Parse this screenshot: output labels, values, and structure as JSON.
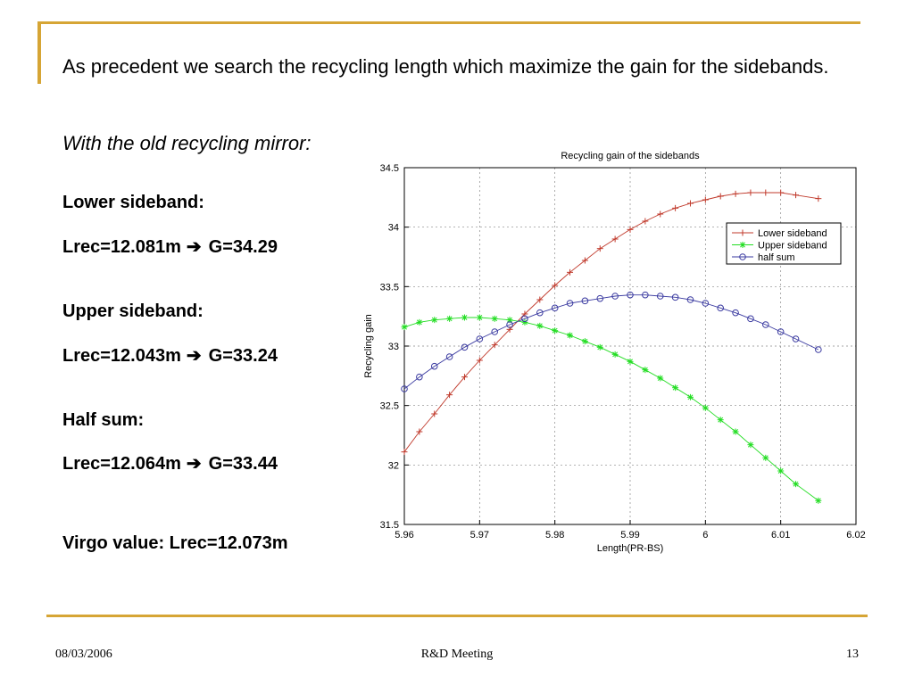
{
  "slide": {
    "intro": "As precedent we search the recycling length which maximize the gain for the sidebands.",
    "old_mirror": "With the old recycling mirror:",
    "lower_heading": "Lower sideband:",
    "lower_result": {
      "lrec": "Lrec=12.081m",
      "gain": "G=34.29"
    },
    "upper_heading": "Upper sideband:",
    "upper_result": {
      "lrec": "Lrec=12.043m",
      "gain": "G=33.24"
    },
    "half_heading": "Half sum:",
    "half_result": {
      "lrec": "Lrec=12.064m",
      "gain": "G=33.44"
    },
    "arrow_glyph": "➔",
    "virgo": "Virgo value: Lrec=12.073m"
  },
  "footer": {
    "date": "08/03/2006",
    "center": "R&D Meeting",
    "page": "13"
  },
  "chart_data": {
    "type": "line",
    "title": "Recycling gain of the sidebands",
    "xlabel": "Length(PR-BS)",
    "ylabel": "Recycling gain",
    "xlim": [
      5.96,
      6.02
    ],
    "ylim": [
      31.5,
      34.5
    ],
    "xticks": [
      5.96,
      5.97,
      5.98,
      5.99,
      6,
      6.01,
      6.02
    ],
    "xtick_labels": [
      "5.96",
      "5.97",
      "5.98",
      "5.99",
      "6",
      "6.01",
      "6.02"
    ],
    "yticks": [
      31.5,
      32,
      32.5,
      33,
      33.5,
      34,
      34.5
    ],
    "ytick_labels": [
      "31.5",
      "32",
      "32.5",
      "33",
      "33.5",
      "34",
      "34.5"
    ],
    "grid": true,
    "legend_position": "top-right",
    "x": [
      5.96,
      5.962,
      5.964,
      5.966,
      5.968,
      5.97,
      5.972,
      5.974,
      5.976,
      5.978,
      5.98,
      5.982,
      5.984,
      5.986,
      5.988,
      5.99,
      5.992,
      5.994,
      5.996,
      5.998,
      6.0,
      6.002,
      6.004,
      6.006,
      6.008,
      6.01,
      6.012,
      6.015
    ],
    "series": [
      {
        "name": "Lower sideband",
        "color": "#c0392b",
        "marker": "plus",
        "values": [
          32.11,
          32.28,
          32.43,
          32.59,
          32.74,
          32.88,
          33.01,
          33.14,
          33.27,
          33.39,
          33.51,
          33.62,
          33.72,
          33.82,
          33.9,
          33.98,
          34.05,
          34.11,
          34.16,
          34.2,
          34.23,
          34.26,
          34.28,
          34.29,
          34.29,
          34.29,
          34.27,
          34.24
        ]
      },
      {
        "name": "Upper sideband",
        "color": "#22dd22",
        "marker": "star",
        "values": [
          33.16,
          33.2,
          33.22,
          33.23,
          33.24,
          33.24,
          33.23,
          33.22,
          33.2,
          33.17,
          33.13,
          33.09,
          33.04,
          32.99,
          32.93,
          32.87,
          32.8,
          32.73,
          32.65,
          32.57,
          32.48,
          32.38,
          32.28,
          32.17,
          32.06,
          31.95,
          31.84,
          31.7
        ]
      },
      {
        "name": "half sum",
        "color": "#3a3aa0",
        "marker": "circle",
        "values": [
          32.64,
          32.74,
          32.83,
          32.91,
          32.99,
          33.06,
          33.12,
          33.18,
          33.23,
          33.28,
          33.32,
          33.36,
          33.38,
          33.4,
          33.42,
          33.43,
          33.43,
          33.42,
          33.41,
          33.39,
          33.36,
          33.32,
          33.28,
          33.23,
          33.18,
          33.12,
          33.06,
          32.97
        ]
      }
    ]
  }
}
